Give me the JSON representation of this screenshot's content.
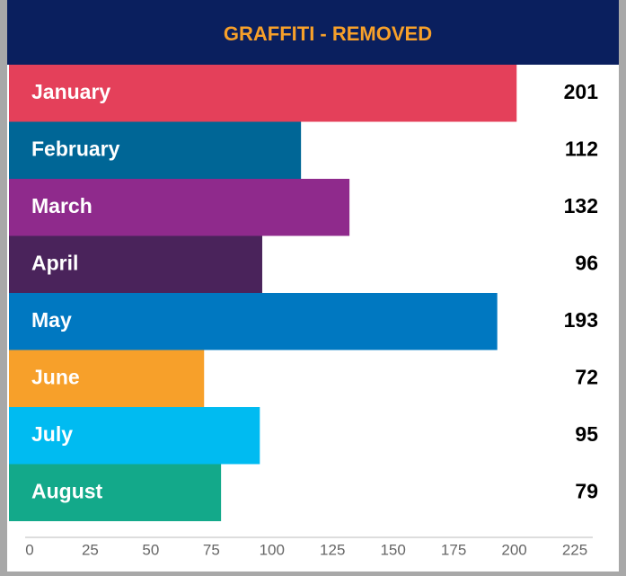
{
  "chart_data": {
    "type": "bar",
    "orientation": "horizontal",
    "title": "GRAFFITI - REMOVED",
    "categories": [
      "January",
      "February",
      "March",
      "April",
      "May",
      "June",
      "July",
      "August"
    ],
    "values": [
      201,
      112,
      132,
      96,
      193,
      72,
      95,
      79
    ],
    "colors": [
      "#e4405a",
      "#006696",
      "#8f2a8c",
      "#4a235b",
      "#0078c1",
      "#f7a02a",
      "#00bbf1",
      "#13a98a"
    ],
    "xlim": [
      0,
      225
    ],
    "xticks": [
      0,
      25,
      50,
      75,
      100,
      125,
      150,
      175,
      200,
      225
    ]
  }
}
